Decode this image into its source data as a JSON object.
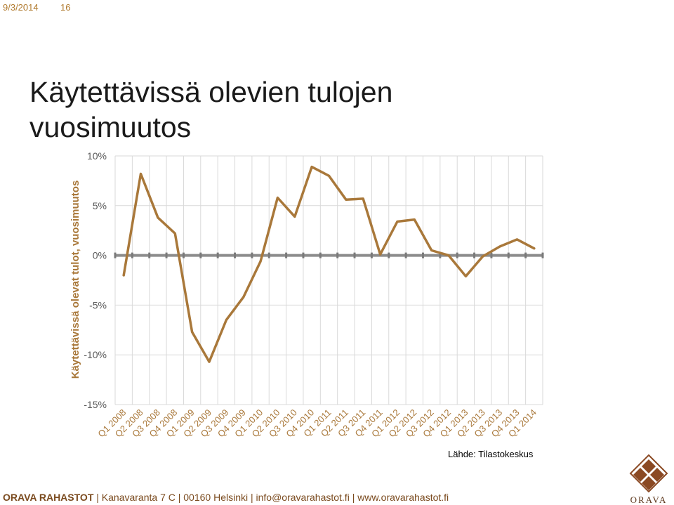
{
  "header": {
    "date": "9/3/2014",
    "slide_number": "16"
  },
  "title": "Käytettävissä olevien tulojen vuosimuutos",
  "colors": {
    "line": "#a9783a",
    "accent": "#b07a2e",
    "brand": "#7a4a1e",
    "zero_line": "#8c8c8c",
    "grid": "#d9d9d9"
  },
  "chart_data": {
    "type": "line",
    "ylabel": "Käytettävissä olevat tulot, vuosimuutos",
    "ylim": [
      -15,
      10
    ],
    "yticks": [
      10,
      5,
      0,
      -5,
      -10,
      -15
    ],
    "ytick_labels": [
      "10%",
      "5%",
      "0%",
      "-5%",
      "-10%",
      "-15%"
    ],
    "grid": true,
    "categories": [
      "Q1 2008",
      "Q2 2008",
      "Q3 2008",
      "Q4 2008",
      "Q1 2009",
      "Q2 2009",
      "Q3 2009",
      "Q4 2009",
      "Q1 2010",
      "Q2 2010",
      "Q3 2010",
      "Q4 2010",
      "Q1 2011",
      "Q2 2011",
      "Q3 2011",
      "Q4 2011",
      "Q1 2012",
      "Q2 2012",
      "Q3 2012",
      "Q4 2012",
      "Q1 2013",
      "Q2 2013",
      "Q3 2013",
      "Q4 2013",
      "Q1 2014"
    ],
    "series": [
      {
        "values": [
          -2.0,
          8.2,
          3.8,
          2.2,
          -7.7,
          -10.7,
          -6.5,
          -4.2,
          -0.6,
          5.8,
          3.9,
          8.9,
          8.0,
          5.6,
          5.7,
          0.1,
          3.4,
          3.6,
          0.5,
          0.0,
          -2.1,
          -0.1,
          0.9,
          1.6,
          0.7
        ]
      }
    ]
  },
  "source": "Lähde: Tilastokeskus",
  "footer": {
    "brand": "ORAVA RAHASTOT",
    "contact": " | Kanavaranta 7 C | 00160 Helsinki | info@oravarahastot.fi | www.oravarahastot.fi"
  },
  "logo": {
    "text": "ORAVA",
    "icon": "orava-diamond-logo-icon"
  }
}
